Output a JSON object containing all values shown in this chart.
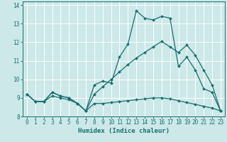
{
  "xlabel": "Humidex (Indice chaleur)",
  "bg_color": "#cce8e8",
  "grid_color": "#ffffff",
  "line_color": "#1a6e6e",
  "xlim": [
    -0.5,
    23.5
  ],
  "ylim": [
    8.0,
    14.2
  ],
  "yticks": [
    8,
    9,
    10,
    11,
    12,
    13,
    14
  ],
  "xticks": [
    0,
    1,
    2,
    3,
    4,
    5,
    6,
    7,
    8,
    9,
    10,
    11,
    12,
    13,
    14,
    15,
    16,
    17,
    18,
    19,
    20,
    21,
    22,
    23
  ],
  "curve1_x": [
    0,
    1,
    2,
    3,
    4,
    5,
    6,
    7,
    8,
    9,
    10,
    11,
    12,
    13,
    14,
    15,
    16,
    17,
    18,
    19,
    20,
    21,
    22,
    23
  ],
  "curve1_y": [
    9.2,
    8.8,
    8.8,
    9.3,
    9.1,
    9.0,
    8.7,
    8.3,
    9.7,
    9.9,
    9.8,
    11.2,
    11.9,
    13.7,
    13.3,
    13.2,
    13.4,
    13.3,
    10.7,
    11.2,
    10.5,
    9.5,
    9.3,
    8.3
  ],
  "curve2_x": [
    0,
    1,
    2,
    3,
    4,
    5,
    6,
    7,
    8,
    9,
    10,
    11,
    12,
    13,
    14,
    15,
    16,
    17,
    18,
    19,
    20,
    21,
    22,
    23
  ],
  "curve2_y": [
    9.2,
    8.8,
    8.8,
    9.1,
    9.0,
    8.9,
    8.7,
    8.3,
    8.7,
    8.7,
    8.75,
    8.8,
    8.85,
    8.9,
    8.95,
    9.0,
    9.0,
    8.95,
    8.85,
    8.75,
    8.65,
    8.55,
    8.45,
    8.3
  ],
  "curve3_x": [
    0,
    1,
    2,
    3,
    4,
    5,
    6,
    7,
    8,
    9,
    10,
    11,
    12,
    13,
    14,
    15,
    16,
    17,
    18,
    19,
    20,
    21,
    22,
    23
  ],
  "curve3_y": [
    9.2,
    8.8,
    8.8,
    9.3,
    9.1,
    9.0,
    8.7,
    8.3,
    9.2,
    9.6,
    10.0,
    10.4,
    10.8,
    11.15,
    11.45,
    11.75,
    12.05,
    11.75,
    11.45,
    11.85,
    11.3,
    10.5,
    9.7,
    8.3
  ]
}
